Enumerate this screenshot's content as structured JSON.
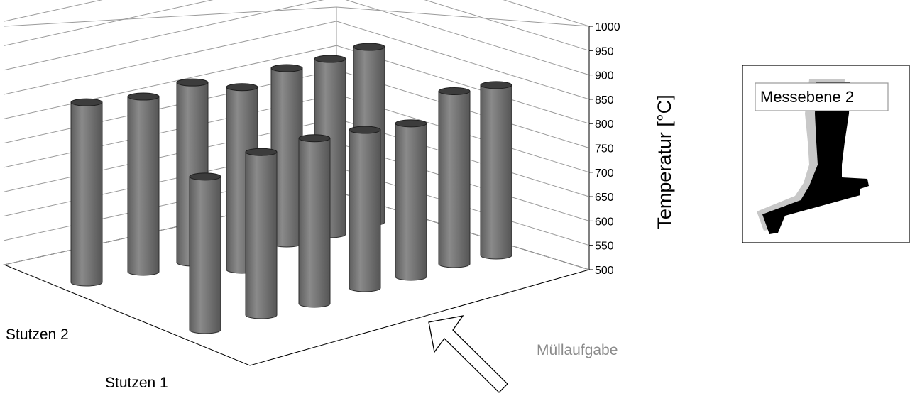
{
  "chart_data": {
    "type": "bar3d-cylinder",
    "zlabel": "Temperatur [°C]",
    "zlim": [
      500,
      1000
    ],
    "z_ticks": [
      "1000",
      "950",
      "900",
      "850",
      "800",
      "750",
      "700",
      "650",
      "600",
      "550",
      "500"
    ],
    "row_labels": [
      "Stutzen 2",
      "Stutzen 1"
    ],
    "grid": true,
    "series": [
      {
        "name": "Stutzen 2",
        "values": [
          870,
          860,
          870,
          875,
          860,
          860,
          860,
          855,
          850
        ]
      },
      {
        "name": "Stutzen 1",
        "values": [
          815,
          835,
          840,
          825,
          815
        ]
      }
    ]
  },
  "annotations": {
    "feed_label": "Müllaufgabe",
    "inset_label": "Messebene 2"
  },
  "colors": {
    "cylinder_body": "#7d7d7d",
    "cylinder_top": "#3c3c3c",
    "gridline": "#9a9a9a",
    "inset_dark": "#000000",
    "inset_light": "#c8c8c8"
  }
}
